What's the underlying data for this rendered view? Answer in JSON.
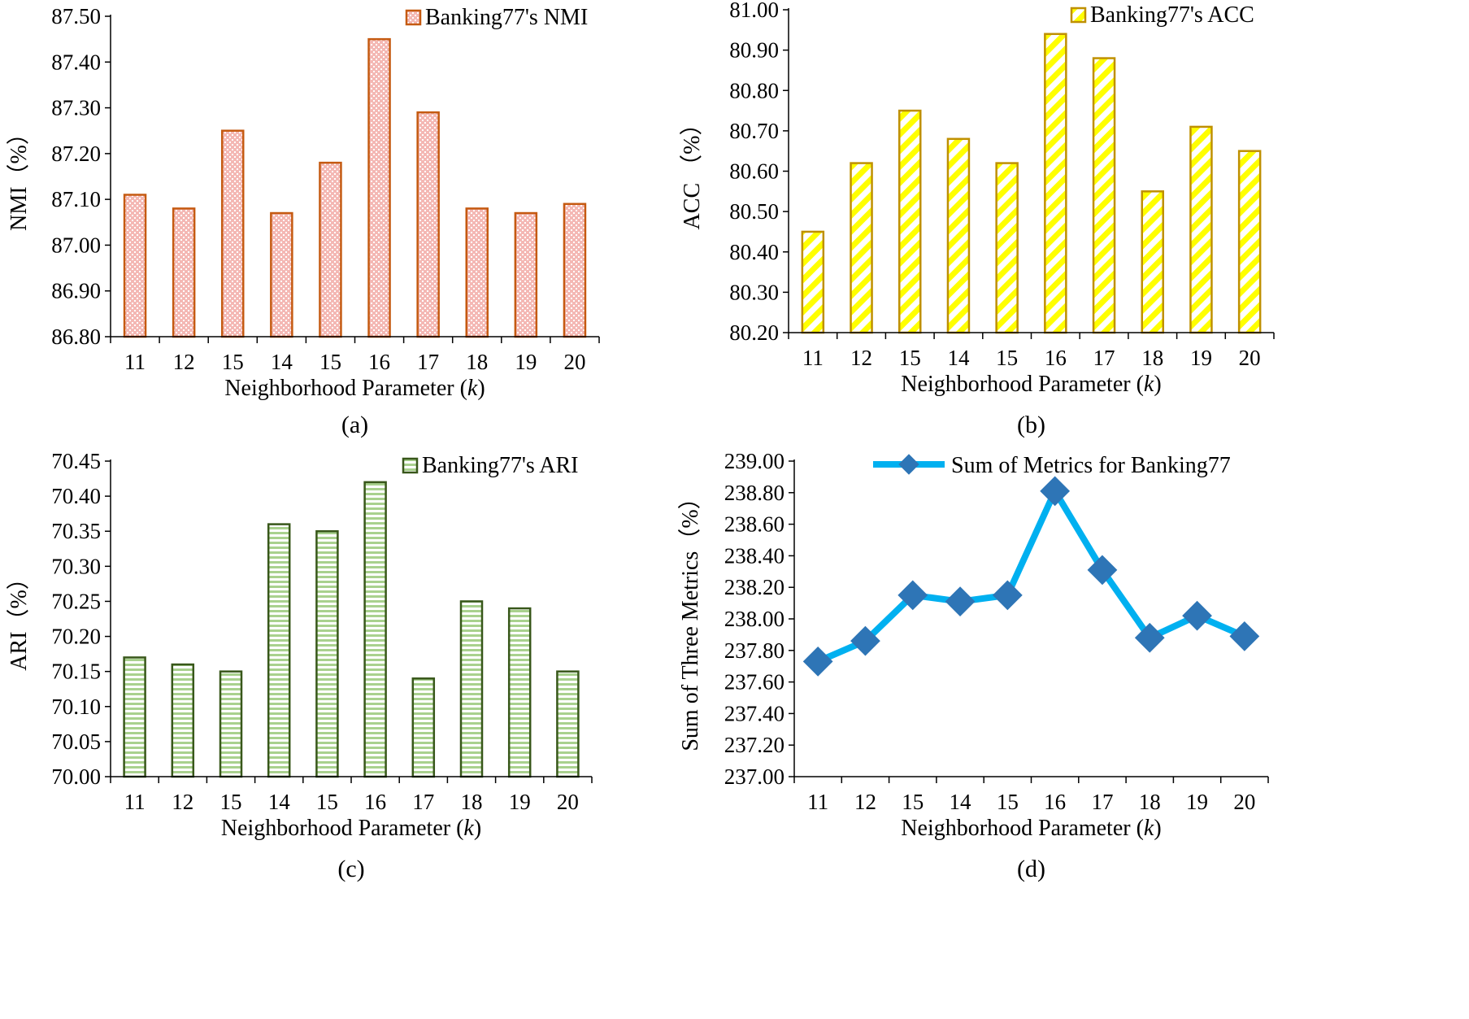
{
  "chart_data": [
    {
      "id": "a",
      "type": "bar",
      "panel_label": "(a)",
      "categories": [
        "11",
        "12",
        "15",
        "14",
        "15",
        "16",
        "17",
        "18",
        "19",
        "20"
      ],
      "series": [
        {
          "name": "Banking77's NMI",
          "values": [
            87.11,
            87.08,
            87.25,
            87.07,
            87.18,
            87.45,
            87.29,
            87.08,
            87.07,
            87.09
          ]
        }
      ],
      "xlabel": "Neighborhood Parameter (",
      "xlabel_var": "k",
      "xlabel_end": ")",
      "ylabel": "NMI（%）",
      "ylim": [
        86.8,
        87.5
      ],
      "yticks": [
        "86.80",
        "86.90",
        "87.00",
        "87.10",
        "87.20",
        "87.30",
        "87.40",
        "87.50"
      ],
      "legend_position": "top-right",
      "colors": {
        "edge": "#c55a11",
        "fill": "#f4b8b4",
        "pattern": "#ffffff"
      }
    },
    {
      "id": "b",
      "type": "bar",
      "panel_label": "(b)",
      "categories": [
        "11",
        "12",
        "15",
        "14",
        "15",
        "16",
        "17",
        "18",
        "19",
        "20"
      ],
      "series": [
        {
          "name": "Banking77's ACC",
          "values": [
            80.45,
            80.62,
            80.75,
            80.68,
            80.62,
            80.94,
            80.88,
            80.55,
            80.71,
            80.65
          ]
        }
      ],
      "xlabel": "Neighborhood Parameter (",
      "xlabel_var": "k",
      "xlabel_end": ")",
      "ylabel": "ACC （%）",
      "ylim": [
        80.2,
        81.0
      ],
      "yticks": [
        "80.20",
        "80.30",
        "80.40",
        "80.50",
        "80.60",
        "80.70",
        "80.80",
        "80.90",
        "81.00"
      ],
      "legend_position": "top-right",
      "colors": {
        "edge": "#bf9000",
        "fill": "#ffff00",
        "pattern": "#ffffff"
      }
    },
    {
      "id": "c",
      "type": "bar",
      "panel_label": "(c)",
      "categories": [
        "11",
        "12",
        "15",
        "14",
        "15",
        "16",
        "17",
        "18",
        "19",
        "20"
      ],
      "series": [
        {
          "name": "Banking77's ARI",
          "values": [
            70.17,
            70.16,
            70.15,
            70.36,
            70.35,
            70.42,
            70.14,
            70.25,
            70.24,
            70.15
          ]
        }
      ],
      "xlabel": "Neighborhood Parameter (",
      "xlabel_var": "k",
      "xlabel_end": ")",
      "ylabel": "ARI（%）",
      "ylim": [
        70.0,
        70.45
      ],
      "yticks": [
        "70.00",
        "70.05",
        "70.10",
        "70.15",
        "70.20",
        "70.25",
        "70.30",
        "70.35",
        "70.40",
        "70.45"
      ],
      "legend_position": "top-right",
      "colors": {
        "edge": "#38571a",
        "fill": "#a9d18e",
        "pattern": "#ffffff"
      }
    },
    {
      "id": "d",
      "type": "line",
      "panel_label": "(d)",
      "categories": [
        "11",
        "12",
        "15",
        "14",
        "15",
        "16",
        "17",
        "18",
        "19",
        "20"
      ],
      "series": [
        {
          "name": "Sum of Metrics for Banking77",
          "values": [
            237.73,
            237.86,
            238.15,
            238.11,
            238.15,
            238.81,
            238.31,
            237.88,
            238.02,
            237.89
          ]
        }
      ],
      "xlabel": "Neighborhood Parameter (",
      "xlabel_var": "k",
      "xlabel_end": ")",
      "ylabel": "Sum of Three Metrics（%）",
      "ylim": [
        237.0,
        239.0
      ],
      "yticks": [
        "237.00",
        "237.20",
        "237.40",
        "237.60",
        "237.80",
        "238.00",
        "238.20",
        "238.40",
        "238.60",
        "238.80",
        "239.00"
      ],
      "legend_position": "top-right",
      "colors": {
        "line": "#00b0f0",
        "marker": "#2e75b6"
      }
    }
  ]
}
